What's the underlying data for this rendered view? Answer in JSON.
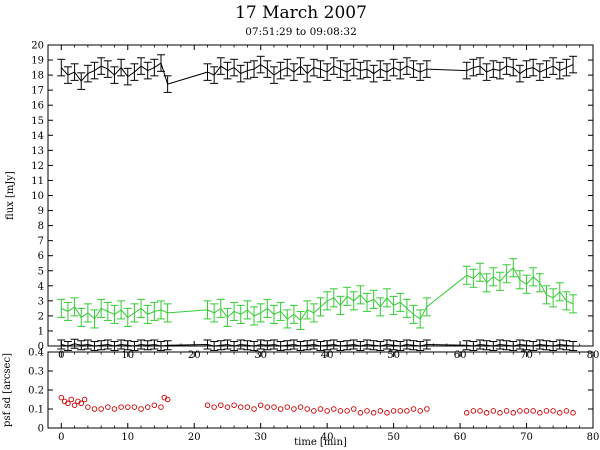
{
  "title": "17 March 2007",
  "subtitle": "07:51:29 to 09:08:32",
  "chart_data": [
    {
      "type": "line",
      "ylabel": "flux [mJy]",
      "xlim": [
        -2,
        80
      ],
      "ylim": [
        0,
        20
      ],
      "xticks": [
        0,
        10,
        20,
        30,
        40,
        50,
        60,
        70,
        80
      ],
      "yticks": [
        0,
        1,
        2,
        3,
        4,
        5,
        6,
        7,
        8,
        9,
        10,
        11,
        12,
        13,
        14,
        15,
        16,
        17,
        18,
        19,
        20
      ],
      "colors": {
        "black_series": "#000000",
        "green_series": "#33cc33"
      },
      "series": [
        {
          "color": "#000000",
          "error_bar": 0.55,
          "x": [
            0,
            1,
            2,
            3,
            4,
            5,
            6,
            7,
            8,
            9,
            10,
            11,
            12,
            13,
            14,
            15,
            16,
            22,
            23,
            24,
            25,
            26,
            27,
            28,
            29,
            30,
            31,
            32,
            33,
            34,
            35,
            36,
            37,
            38,
            39,
            40,
            41,
            42,
            43,
            44,
            45,
            46,
            47,
            48,
            49,
            50,
            51,
            52,
            53,
            54,
            55,
            61,
            62,
            63,
            64,
            65,
            66,
            67,
            68,
            69,
            70,
            71,
            72,
            73,
            74,
            75,
            76,
            77
          ],
          "y": [
            18.5,
            18.0,
            18.2,
            17.6,
            18.1,
            18.3,
            18.6,
            18.4,
            18.0,
            18.5,
            17.9,
            18.2,
            18.6,
            18.3,
            18.5,
            18.8,
            17.4,
            18.2,
            18.0,
            18.6,
            18.3,
            18.5,
            18.1,
            18.3,
            18.4,
            18.7,
            18.4,
            18.0,
            18.3,
            18.5,
            18.2,
            18.6,
            18.1,
            18.5,
            18.4,
            18.2,
            18.6,
            18.4,
            18.2,
            18.5,
            18.3,
            18.4,
            18.1,
            18.4,
            18.2,
            18.5,
            18.3,
            18.6,
            18.4,
            18.2,
            18.4,
            18.3,
            18.5,
            18.6,
            18.2,
            18.4,
            18.3,
            18.6,
            18.5,
            18.1,
            18.4,
            18.5,
            18.2,
            18.4,
            18.6,
            18.3,
            18.5,
            18.7
          ]
        },
        {
          "color": "#33cc33",
          "error_bar": 0.6,
          "x": [
            0,
            1,
            2,
            3,
            4,
            5,
            6,
            7,
            8,
            9,
            10,
            11,
            12,
            13,
            14,
            15,
            16,
            22,
            23,
            24,
            25,
            26,
            27,
            28,
            29,
            30,
            31,
            32,
            33,
            34,
            35,
            36,
            37,
            38,
            39,
            40,
            41,
            42,
            43,
            44,
            45,
            46,
            47,
            48,
            49,
            50,
            51,
            52,
            53,
            54,
            55,
            61,
            62,
            63,
            64,
            65,
            66,
            67,
            68,
            69,
            70,
            71,
            72,
            73,
            74,
            75,
            76,
            77
          ],
          "y": [
            2.5,
            2.3,
            2.6,
            1.9,
            2.2,
            1.8,
            2.5,
            2.3,
            2.1,
            2.4,
            1.9,
            2.2,
            2.5,
            2.1,
            2.3,
            2.4,
            2.2,
            2.4,
            2.2,
            2.5,
            1.9,
            2.3,
            2.1,
            2.4,
            2.0,
            2.2,
            2.5,
            2.1,
            2.3,
            1.8,
            2.1,
            1.7,
            2.4,
            2.2,
            2.6,
            3.0,
            3.2,
            2.7,
            3.3,
            3.0,
            3.4,
            2.9,
            3.1,
            2.6,
            3.2,
            2.7,
            2.9,
            2.5,
            2.1,
            1.8,
            2.6,
            4.7,
            4.5,
            4.9,
            4.2,
            4.6,
            4.3,
            4.8,
            5.2,
            4.4,
            4.1,
            4.6,
            4.2,
            3.4,
            3.2,
            3.6,
            3.0,
            2.8
          ]
        },
        {
          "color": "#000000",
          "error_bar": 0.3,
          "x": [
            0,
            1,
            2,
            3,
            4,
            5,
            6,
            7,
            8,
            9,
            10,
            11,
            12,
            13,
            14,
            15,
            16,
            22,
            23,
            24,
            25,
            26,
            27,
            28,
            29,
            30,
            31,
            32,
            33,
            34,
            35,
            36,
            37,
            38,
            39,
            40,
            41,
            42,
            43,
            44,
            45,
            46,
            47,
            48,
            49,
            50,
            51,
            52,
            53,
            54,
            55,
            61,
            62,
            63,
            64,
            65,
            66,
            67,
            68,
            69,
            70,
            71,
            72,
            73,
            74,
            75,
            76,
            77
          ],
          "y": [
            0.1,
            0.0,
            0.15,
            0.05,
            0.1,
            0.0,
            0.05,
            0.1,
            0.0,
            0.1,
            0.05,
            0.0,
            0.1,
            0.05,
            0.1,
            0.0,
            0.05,
            0.1,
            0.0,
            0.05,
            0.1,
            0.0,
            0.1,
            0.05,
            0.0,
            0.1,
            0.05,
            0.1,
            0.0,
            0.05,
            0.1,
            0.0,
            0.05,
            0.1,
            0.0,
            0.05,
            0.1,
            0.0,
            0.05,
            0.1,
            0.0,
            0.1,
            0.05,
            0.0,
            0.1,
            0.05,
            0.0,
            0.1,
            0.05,
            0.0,
            0.1,
            0.05,
            0.0,
            0.1,
            0.05,
            0.0,
            0.1,
            0.05,
            0.0,
            0.1,
            0.05,
            0.0,
            0.1,
            0.05,
            0.0,
            0.1,
            0.05,
            0.0
          ]
        }
      ]
    },
    {
      "type": "scatter",
      "xlabel": "time [min]",
      "ylabel": "psf sd [arcsec]",
      "xlim": [
        -2,
        80
      ],
      "ylim": [
        0,
        0.4
      ],
      "xticks": [
        0,
        10,
        20,
        30,
        40,
        50,
        60,
        70,
        80
      ],
      "yticks": [
        0,
        0.1,
        0.2,
        0.3,
        0.4
      ],
      "yticklabels": [
        "0",
        "0.1",
        "0.2",
        "0.3",
        "0.4"
      ],
      "marker_color": "#cc0000",
      "series": [
        {
          "x": [
            0,
            0.5,
            1,
            1.5,
            2,
            2.5,
            3,
            3.5,
            4,
            5,
            6,
            7,
            8,
            9,
            10,
            11,
            12,
            13,
            14,
            15,
            15.5,
            16,
            22,
            23,
            24,
            25,
            26,
            27,
            28,
            29,
            30,
            31,
            32,
            33,
            34,
            35,
            36,
            37,
            38,
            39,
            40,
            41,
            42,
            43,
            44,
            45,
            46,
            47,
            48,
            49,
            50,
            51,
            52,
            53,
            54,
            55,
            61,
            62,
            63,
            64,
            65,
            66,
            67,
            68,
            69,
            70,
            71,
            72,
            73,
            74,
            75,
            76,
            77
          ],
          "y": [
            0.16,
            0.14,
            0.13,
            0.15,
            0.12,
            0.14,
            0.13,
            0.15,
            0.11,
            0.1,
            0.1,
            0.11,
            0.1,
            0.11,
            0.11,
            0.11,
            0.1,
            0.11,
            0.12,
            0.11,
            0.16,
            0.15,
            0.12,
            0.11,
            0.12,
            0.11,
            0.12,
            0.11,
            0.11,
            0.1,
            0.12,
            0.11,
            0.11,
            0.1,
            0.11,
            0.1,
            0.11,
            0.1,
            0.09,
            0.1,
            0.09,
            0.1,
            0.09,
            0.09,
            0.1,
            0.08,
            0.09,
            0.08,
            0.09,
            0.08,
            0.09,
            0.09,
            0.09,
            0.1,
            0.09,
            0.1,
            0.08,
            0.09,
            0.09,
            0.08,
            0.09,
            0.08,
            0.09,
            0.08,
            0.09,
            0.09,
            0.09,
            0.08,
            0.09,
            0.09,
            0.08,
            0.09,
            0.08
          ]
        }
      ]
    }
  ]
}
